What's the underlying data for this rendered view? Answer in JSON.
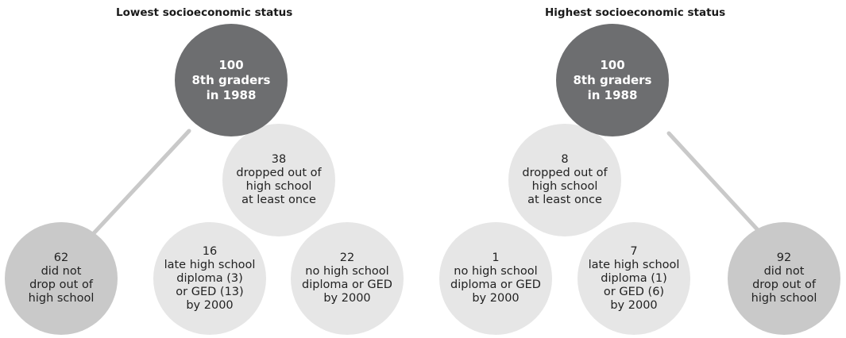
{
  "colors": {
    "root": "#6d6e70",
    "dropped": "#e6e6e6",
    "did_not_drop": "#c9c9c9",
    "connector": "#c9c9c9"
  },
  "left": {
    "title": "Lowest socioeconomic status",
    "root": [
      "100",
      "8th graders",
      "in 1988"
    ],
    "dropped": [
      "38",
      "dropped out of",
      "high school",
      "at least once"
    ],
    "not_dropped": [
      "62",
      "did not",
      "drop out of",
      "high school"
    ],
    "late_diploma": [
      "16",
      "late high school",
      "diploma (3)",
      "or GED (13)",
      "by 2000"
    ],
    "no_diploma": [
      "22",
      "no high school",
      "diploma or GED",
      "by 2000"
    ]
  },
  "right": {
    "title": "Highest socioeconomic status",
    "root": [
      "100",
      "8th graders",
      "in 1988"
    ],
    "dropped": [
      "8",
      "dropped out of",
      "high school",
      "at least once"
    ],
    "no_diploma": [
      "1",
      "no high school",
      "diploma or GED",
      "by 2000"
    ],
    "late_diploma": [
      "7",
      "late high school",
      "diploma (1)",
      "or GED (6)",
      "by 2000"
    ],
    "not_dropped": [
      "92",
      "did not",
      "drop out of",
      "high school"
    ]
  }
}
